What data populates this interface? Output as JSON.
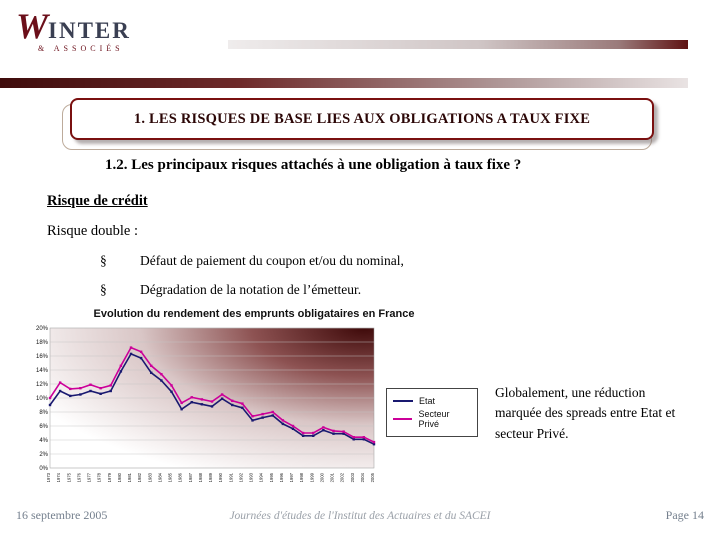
{
  "logo": {
    "initial": "W",
    "rest": "INTER",
    "sub": "& ASSOCIÉS"
  },
  "banner_title": "1. LES RISQUES DE BASE LIES AUX OBLIGATIONS A TAUX FIXE",
  "subtitle": "1.2. Les principaux risques attachés à une obligation à taux fixe ?",
  "body": {
    "heading": "Risque de crédit",
    "intro": "Risque double :",
    "bullets": [
      {
        "marker": "§",
        "text": "Défaut de paiement du coupon et/ou du nominal,"
      },
      {
        "marker": "§",
        "text": "Dégradation de la notation de l’émetteur."
      }
    ],
    "note": "Globalement,  une réduction marquée des spreads entre Etat et secteur Privé."
  },
  "chart_data": {
    "type": "line",
    "title": "Evolution du rendement des emprunts obligataires en France",
    "xlabel": "",
    "ylabel": "",
    "ylim": [
      0,
      20
    ],
    "ytick": 2,
    "ytick_suffix": "%",
    "grid": true,
    "legend_position": "right",
    "x": [
      "1973",
      "1974",
      "1975",
      "1976",
      "1977",
      "1978",
      "1979",
      "1980",
      "1981",
      "1982",
      "1983",
      "1984",
      "1985",
      "1986",
      "1987",
      "1988",
      "1989",
      "1990",
      "1991",
      "1992",
      "1993",
      "1994",
      "1995",
      "1996",
      "1997",
      "1998",
      "1999",
      "2000",
      "2001",
      "2002",
      "2003",
      "2004",
      "2005"
    ],
    "series": [
      {
        "name": "Etat",
        "color": "#191970",
        "values": [
          9.0,
          11.0,
          10.3,
          10.5,
          11.0,
          10.6,
          11.0,
          13.8,
          16.3,
          15.7,
          13.6,
          12.5,
          10.9,
          8.4,
          9.4,
          9.1,
          8.8,
          9.9,
          9.0,
          8.6,
          6.8,
          7.2,
          7.5,
          6.3,
          5.6,
          4.6,
          4.6,
          5.4,
          4.9,
          4.9,
          4.1,
          4.1,
          3.4
        ]
      },
      {
        "name": "Secteur Privé",
        "color": "#cc0099",
        "values": [
          10.0,
          12.2,
          11.3,
          11.4,
          11.9,
          11.4,
          11.8,
          14.6,
          17.2,
          16.6,
          14.6,
          13.4,
          11.8,
          9.3,
          10.1,
          9.8,
          9.5,
          10.5,
          9.6,
          9.2,
          7.4,
          7.7,
          8.0,
          6.8,
          6.0,
          5.0,
          5.0,
          5.8,
          5.3,
          5.2,
          4.4,
          4.4,
          3.7
        ]
      }
    ]
  },
  "footer": {
    "date": "16 septembre 2005",
    "center": "Journées d'études de l'Institut des Actuaires et du SACEI",
    "page": "Page 14"
  },
  "colors": {
    "accent_maroon": "#7a1010",
    "banner_text": "#2b0606"
  }
}
